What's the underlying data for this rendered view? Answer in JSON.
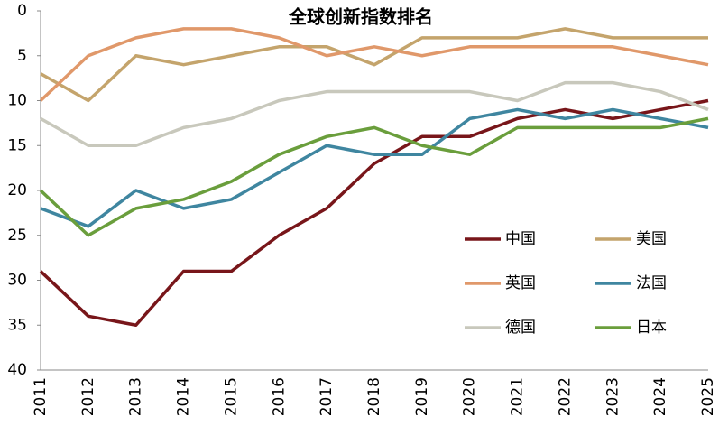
{
  "chart_data": {
    "type": "line",
    "title": "全球创新指数排名",
    "categories": [
      "2011",
      "2012",
      "2013",
      "2014",
      "2015",
      "2016",
      "2017",
      "2018",
      "2019",
      "2020",
      "2021",
      "2022",
      "2023",
      "2024",
      "2025"
    ],
    "ylim": [
      0,
      40
    ],
    "yticks": [
      0,
      5,
      10,
      15,
      20,
      25,
      30,
      35,
      40
    ],
    "y_inverted": true,
    "grid": false,
    "legend": "lower right",
    "series": [
      {
        "name": "中国",
        "color": "#78161a",
        "values": [
          29,
          34,
          35,
          29,
          29,
          25,
          22,
          17,
          14,
          14,
          12,
          11,
          12,
          11,
          10
        ]
      },
      {
        "name": "美国",
        "color": "#c4a46c",
        "values": [
          7,
          10,
          5,
          6,
          5,
          4,
          4,
          6,
          3,
          3,
          3,
          2,
          3,
          3,
          3
        ]
      },
      {
        "name": "英国",
        "color": "#e0986a",
        "values": [
          10,
          5,
          3,
          2,
          2,
          3,
          5,
          4,
          5,
          4,
          4,
          4,
          4,
          5,
          6
        ]
      },
      {
        "name": "法国",
        "color": "#3f86a0",
        "values": [
          22,
          24,
          20,
          22,
          21,
          18,
          15,
          16,
          16,
          12,
          11,
          12,
          11,
          12,
          13
        ]
      },
      {
        "name": "德国",
        "color": "#c8c8bc",
        "values": [
          12,
          15,
          15,
          13,
          12,
          10,
          9,
          9,
          9,
          9,
          10,
          8,
          8,
          9,
          11
        ]
      },
      {
        "name": "日本",
        "color": "#6a9e3c",
        "values": [
          20,
          25,
          22,
          21,
          19,
          16,
          14,
          13,
          15,
          16,
          13,
          13,
          13,
          13,
          12
        ]
      }
    ]
  }
}
